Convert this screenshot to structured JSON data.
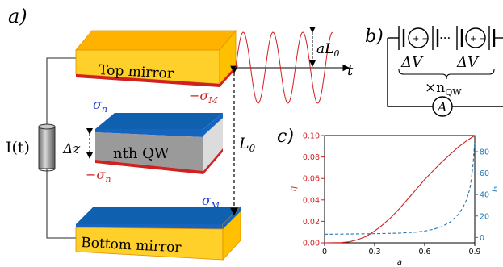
{
  "panel_a": {
    "label": "a)",
    "top_mirror": "Top mirror",
    "bottom_mirror": "Bottom mirror",
    "qw": "nth QW",
    "current": "I(t)",
    "delta_z": "Δz",
    "L0": "L",
    "L0_sub": "0",
    "aL0": "aL",
    "aL0_sub": "0",
    "t": "t",
    "sigma_n": "σ",
    "sigma_n_sub": "n",
    "minus_sigma_n": "−σ",
    "sigma_M": "σ",
    "sigma_M_sub": "M",
    "minus_sigma_M": "−σ"
  },
  "panel_b": {
    "label": "b)",
    "dV1": "ΔV",
    "dV2": "ΔV",
    "dots": "···",
    "times": "×n",
    "times_sub": "QW",
    "ammeter": "A"
  },
  "panel_c": {
    "label": "c)"
  },
  "colors": {
    "mirror_gold": "#FFC400",
    "mirror_orange": "#FFB300",
    "qw_blue": "#1060B0",
    "qw_grey": "#A8A8A8",
    "red": "#D02020",
    "blue": "#1F77B4"
  },
  "chart_data": {
    "type": "line",
    "xlabel": "a",
    "ylabel_left": "η",
    "ylabel_right": "I₃",
    "xlim": [
      0,
      0.9
    ],
    "ylim_left": [
      0,
      0.1
    ],
    "ylim_right": [
      -5,
      95
    ],
    "x_ticks": [
      "0",
      "0.3",
      "0.6",
      "0.9"
    ],
    "y_left_ticks": [
      "0.00",
      "0.02",
      "0.04",
      "0.06",
      "0.08",
      "0.10"
    ],
    "y_right_ticks": [
      "0",
      "20",
      "40",
      "60",
      "80"
    ],
    "series": [
      {
        "axis": "left",
        "style": "solid",
        "color": "#D02020",
        "x": [
          0,
          0.1,
          0.15,
          0.2,
          0.25,
          0.3,
          0.35,
          0.4,
          0.45,
          0.5,
          0.55,
          0.6,
          0.65,
          0.7,
          0.75,
          0.8,
          0.85,
          0.9
        ],
        "y": [
          0,
          0.0002,
          0.001,
          0.003,
          0.006,
          0.011,
          0.017,
          0.024,
          0.032,
          0.041,
          0.05,
          0.059,
          0.067,
          0.075,
          0.082,
          0.089,
          0.095,
          0.1
        ]
      },
      {
        "axis": "right",
        "style": "dashed",
        "color": "#1F77B4",
        "x": [
          0,
          0.3,
          0.45,
          0.55,
          0.6,
          0.65,
          0.7,
          0.75,
          0.8,
          0.83,
          0.85,
          0.87,
          0.88,
          0.89,
          0.9
        ],
        "y": [
          3,
          3.5,
          4,
          5,
          6,
          7.5,
          10,
          14,
          21,
          28,
          35,
          45,
          55,
          68,
          90
        ]
      }
    ]
  }
}
